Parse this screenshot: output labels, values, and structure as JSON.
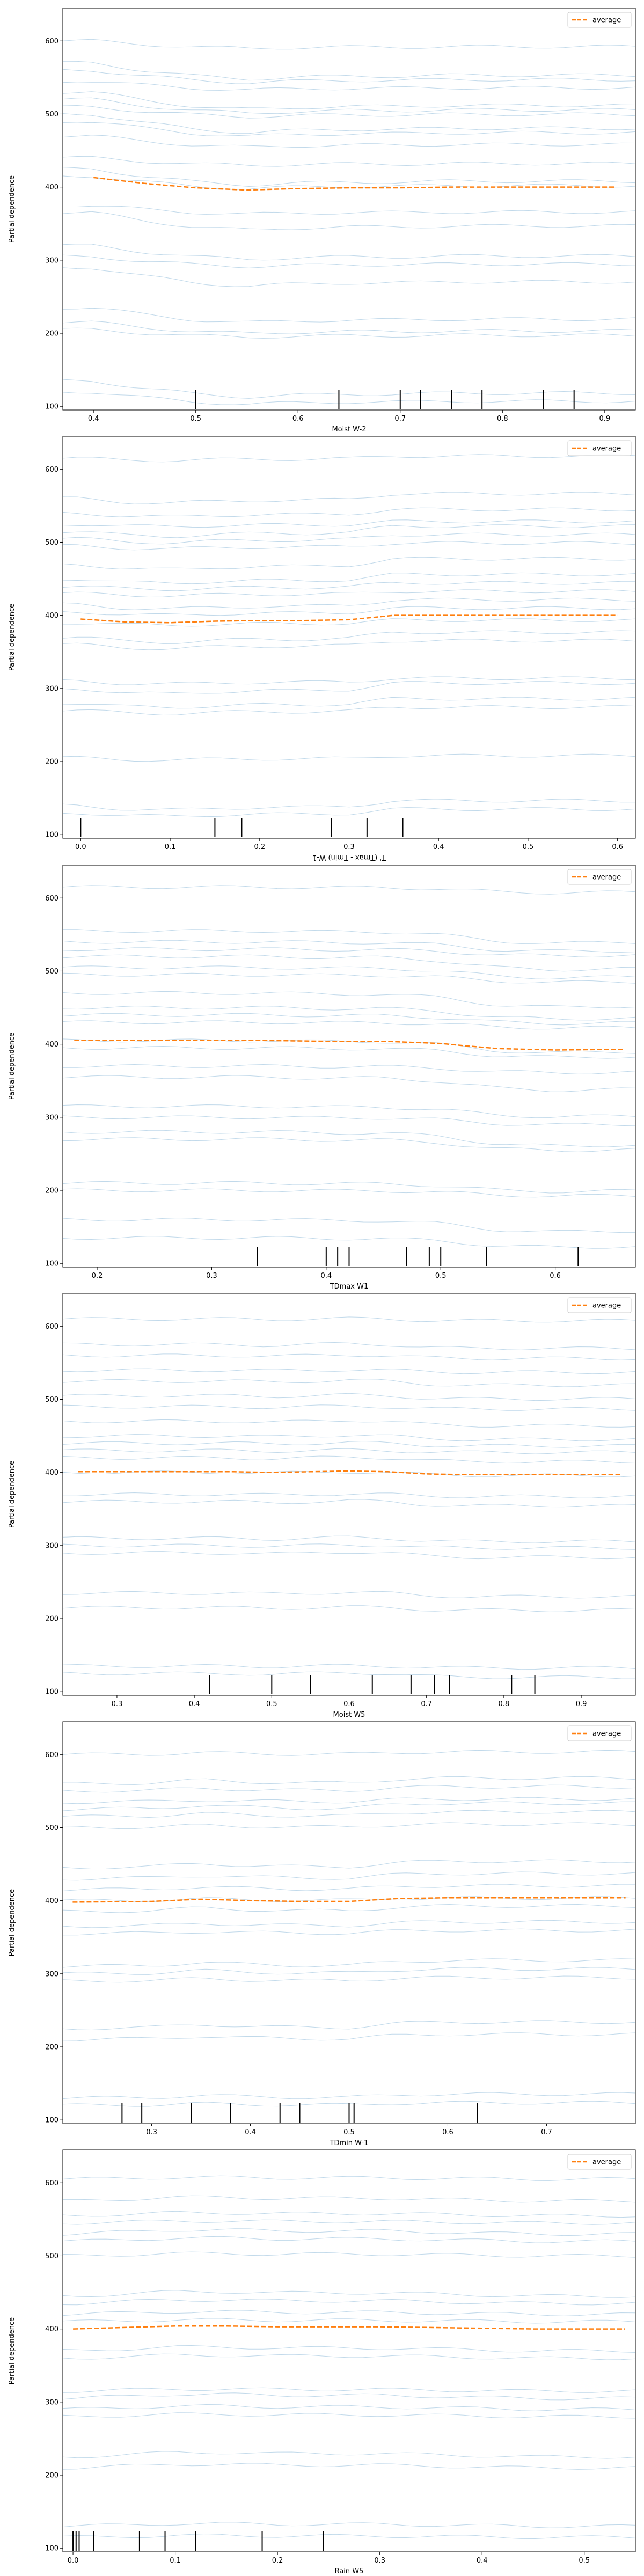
{
  "figure": {
    "legend_label": "average"
  },
  "chart_data": [
    {
      "type": "line",
      "xlabel": "Moist W-2",
      "ylabel": "Partial dependence",
      "xlim": [
        0.37,
        0.93
      ],
      "ylim": [
        95,
        645
      ],
      "xticks": [
        0.4,
        0.5,
        0.6,
        0.7,
        0.8,
        0.9
      ],
      "yticks": [
        100,
        200,
        300,
        400,
        500,
        600
      ],
      "legend": "top-right",
      "grid": false,
      "series": [
        {
          "name": "average",
          "x": [
            0.4,
            0.45,
            0.5,
            0.55,
            0.6,
            0.65,
            0.7,
            0.75,
            0.8,
            0.85,
            0.91
          ],
          "y": [
            413,
            405,
            399,
            396,
            398,
            399,
            399,
            400,
            400,
            400,
            400
          ]
        }
      ],
      "ice_base": [
        600,
        570,
        560,
        545,
        530,
        520,
        510,
        500,
        490,
        470,
        440,
        425,
        415,
        375,
        365,
        320,
        305,
        290,
        235,
        215,
        205,
        135,
        120
      ],
      "rug": [
        0.5,
        0.64,
        0.7,
        0.72,
        0.75,
        0.78,
        0.84,
        0.87
      ]
    },
    {
      "type": "line",
      "xlabel": "T' (Tmax - Tmin) W-1",
      "xlabel_mirrored": true,
      "ylabel": "Partial dependence",
      "xlim": [
        -0.02,
        0.62
      ],
      "ylim": [
        95,
        645
      ],
      "xticks": [
        0.0,
        0.1,
        0.2,
        0.3,
        0.4,
        0.5,
        0.6
      ],
      "yticks": [
        100,
        200,
        300,
        400,
        500,
        600
      ],
      "legend": "top-right",
      "grid": false,
      "series": [
        {
          "name": "average",
          "x": [
            0.0,
            0.05,
            0.1,
            0.15,
            0.2,
            0.25,
            0.3,
            0.35,
            0.4,
            0.5,
            0.6
          ],
          "y": [
            395,
            391,
            390,
            392,
            393,
            393,
            394,
            400,
            400,
            400,
            400
          ]
        }
      ],
      "ice_base": [
        615,
        560,
        540,
        525,
        515,
        505,
        495,
        470,
        450,
        440,
        430,
        415,
        405,
        390,
        370,
        360,
        310,
        300,
        280,
        270,
        205,
        140,
        130
      ],
      "rug": [
        0.0,
        0.15,
        0.18,
        0.28,
        0.32,
        0.36
      ]
    },
    {
      "type": "line",
      "xlabel": "TDmax W1",
      "ylabel": "Partial dependence",
      "xlim": [
        0.17,
        0.67
      ],
      "ylim": [
        95,
        645
      ],
      "xticks": [
        0.2,
        0.3,
        0.4,
        0.5,
        0.6
      ],
      "yticks": [
        100,
        200,
        300,
        400,
        500,
        600
      ],
      "legend": "top-right",
      "grid": false,
      "series": [
        {
          "name": "average",
          "x": [
            0.18,
            0.25,
            0.3,
            0.35,
            0.4,
            0.45,
            0.5,
            0.52,
            0.55,
            0.6,
            0.66
          ],
          "y": [
            405,
            405,
            405,
            405,
            404,
            404,
            401,
            398,
            394,
            392,
            393
          ]
        }
      ],
      "ice_base": [
        615,
        555,
        540,
        530,
        520,
        505,
        495,
        470,
        450,
        440,
        430,
        405,
        395,
        370,
        355,
        315,
        300,
        280,
        270,
        210,
        200,
        160,
        135
      ],
      "rug": [
        0.34,
        0.4,
        0.41,
        0.42,
        0.47,
        0.49,
        0.5,
        0.54,
        0.62
      ]
    },
    {
      "type": "line",
      "xlabel": "Moist W5",
      "ylabel": "Partial dependence",
      "xlim": [
        0.23,
        0.97
      ],
      "ylim": [
        95,
        645
      ],
      "xticks": [
        0.3,
        0.4,
        0.5,
        0.6,
        0.7,
        0.8,
        0.9
      ],
      "yticks": [
        100,
        200,
        300,
        400,
        500,
        600
      ],
      "legend": "top-right",
      "grid": false,
      "series": [
        {
          "name": "average",
          "x": [
            0.25,
            0.35,
            0.45,
            0.5,
            0.55,
            0.6,
            0.65,
            0.7,
            0.75,
            0.85,
            0.95
          ],
          "y": [
            401,
            401,
            401,
            400,
            401,
            402,
            401,
            398,
            397,
            397,
            397
          ]
        }
      ],
      "ice_base": [
        610,
        575,
        560,
        540,
        525,
        505,
        490,
        470,
        450,
        440,
        430,
        420,
        400,
        370,
        360,
        310,
        300,
        290,
        235,
        215,
        135,
        125
      ],
      "rug": [
        0.42,
        0.5,
        0.55,
        0.63,
        0.68,
        0.71,
        0.73,
        0.81,
        0.84
      ]
    },
    {
      "type": "line",
      "xlabel": "TDmin W-1",
      "ylabel": "Partial dependence",
      "xlim": [
        0.21,
        0.79
      ],
      "ylim": [
        95,
        645
      ],
      "xticks": [
        0.2,
        0.3,
        0.4,
        0.5,
        0.6,
        0.7,
        0.8
      ],
      "yticks": [
        100,
        200,
        300,
        400,
        500,
        600
      ],
      "legend": "top-right",
      "grid": false,
      "series": [
        {
          "name": "average",
          "x": [
            0.22,
            0.3,
            0.35,
            0.4,
            0.45,
            0.5,
            0.55,
            0.6,
            0.7,
            0.78
          ],
          "y": [
            398,
            399,
            402,
            400,
            399,
            399,
            403,
            404,
            404,
            404
          ]
        }
      ],
      "ice_base": [
        600,
        560,
        550,
        535,
        525,
        515,
        500,
        445,
        430,
        415,
        400,
        385,
        365,
        355,
        310,
        300,
        290,
        225,
        210,
        130,
        120
      ],
      "rug": [
        0.27,
        0.29,
        0.34,
        0.38,
        0.43,
        0.45,
        0.5,
        0.505,
        0.63
      ]
    },
    {
      "type": "line",
      "xlabel": "Rain W5",
      "ylabel": "Partial dependence",
      "xlim": [
        -0.01,
        0.55
      ],
      "ylim": [
        95,
        645
      ],
      "xticks": [
        0.0,
        0.1,
        0.2,
        0.3,
        0.4,
        0.5
      ],
      "yticks": [
        100,
        200,
        300,
        400,
        500,
        600
      ],
      "legend": "top-right",
      "grid": false,
      "series": [
        {
          "name": "average",
          "x": [
            0.0,
            0.05,
            0.1,
            0.15,
            0.2,
            0.25,
            0.3,
            0.35,
            0.4,
            0.45,
            0.54
          ],
          "y": [
            400,
            402,
            404,
            404,
            403,
            403,
            403,
            402,
            401,
            400,
            400
          ]
        }
      ],
      "ice_base": [
        605,
        575,
        555,
        545,
        530,
        520,
        500,
        445,
        435,
        420,
        410,
        370,
        360,
        315,
        305,
        290,
        280,
        225,
        210,
        130,
        115
      ],
      "rug": [
        0.0,
        0.003,
        0.006,
        0.02,
        0.065,
        0.09,
        0.12,
        0.185,
        0.245
      ]
    }
  ]
}
